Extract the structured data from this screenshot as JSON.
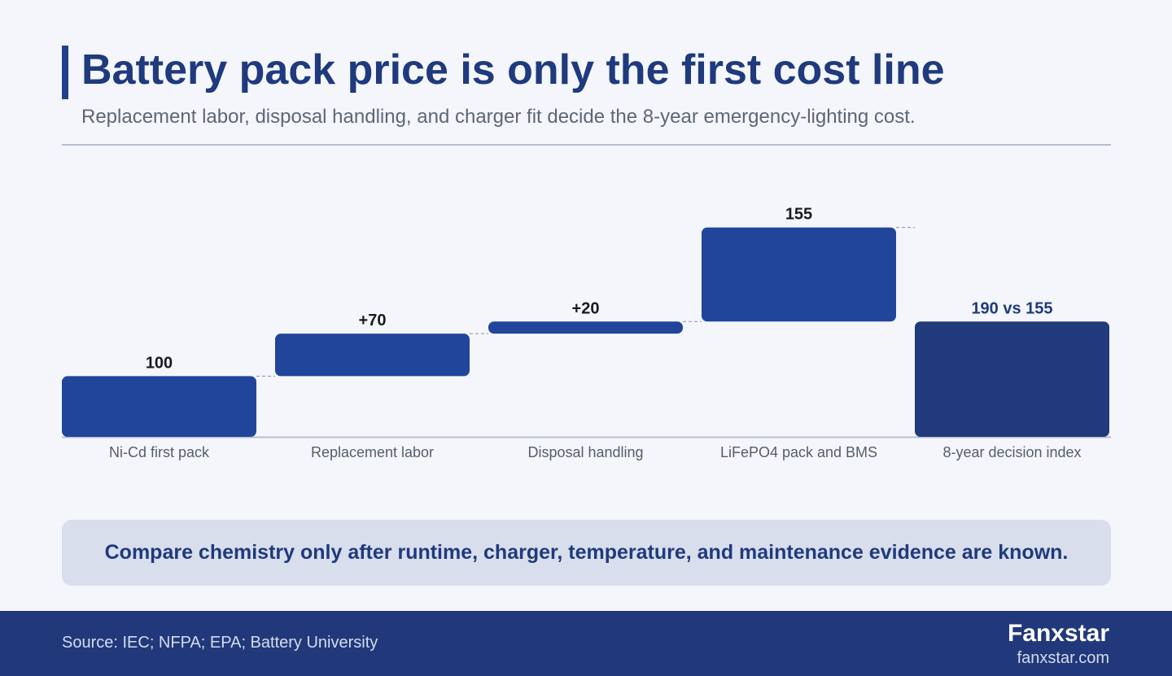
{
  "header": {
    "title": "Battery pack price is only the first cost line",
    "subtitle": "Replacement labor, disposal handling, and charger fit decide the 8-year emergency-lighting cost."
  },
  "chart_data": {
    "type": "bar",
    "subtype": "waterfall",
    "categories": [
      "Ni-Cd first pack",
      "Replacement labor",
      "Disposal handling",
      "LiFePO4 pack and BMS",
      "8-year decision index"
    ],
    "bars": [
      {
        "category": "Ni-Cd first pack",
        "start": 0,
        "end": 100,
        "label": "100",
        "kind": "total"
      },
      {
        "category": "Replacement labor",
        "start": 100,
        "end": 170,
        "label": "+70",
        "kind": "increment"
      },
      {
        "category": "Disposal handling",
        "start": 170,
        "end": 190,
        "label": "+20",
        "kind": "increment"
      },
      {
        "category": "LiFePO4 pack and BMS",
        "start": 190,
        "end": 345,
        "label": "155",
        "kind": "comparison"
      },
      {
        "category": "8-year decision index",
        "start": 0,
        "end": 190,
        "label": "190 vs 155",
        "kind": "final"
      }
    ],
    "ylim": [
      0,
      385
    ],
    "colors": {
      "bar": "#21459a",
      "final": "#213a7b",
      "label": "#1a1a1a",
      "final_label": "#1f3a7d",
      "connector": "#8a8f99",
      "axis": "#b3bdd3"
    },
    "grid": false,
    "legend": "none"
  },
  "callout": {
    "text": "Compare chemistry only after runtime, charger, temperature, and maintenance evidence are known."
  },
  "footer": {
    "source": "Source: IEC; NFPA; EPA; Battery University",
    "brand": "Fanxstar",
    "url": "fanxstar.com"
  }
}
